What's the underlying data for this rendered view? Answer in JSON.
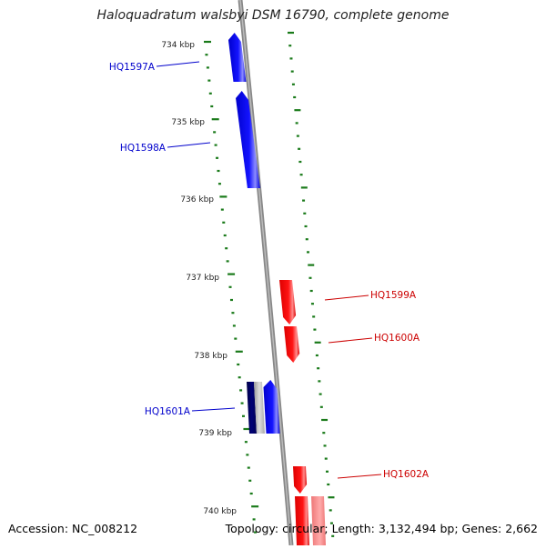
{
  "title": "Haloquadratum walsbyi DSM 16790, complete genome",
  "accession": "Accession: NC_008212",
  "summary": "Topology: circular; Length: 3,132,494 bp; Genes: 2,662",
  "colors": {
    "forward": "#0000ee",
    "reverse": "#ee0000",
    "backbone": "#888888",
    "ticks": "#1a7a1a",
    "forward_label": "#0000cc",
    "reverse_label": "#cc0000"
  },
  "scale_labels": [
    "734 kbp",
    "735 kbp",
    "736 kbp",
    "737 kbp",
    "738 kbp",
    "739 kbp",
    "740 kbp"
  ],
  "genes": [
    {
      "name": "HQ1597A",
      "strand": "forward"
    },
    {
      "name": "HQ1598A",
      "strand": "forward"
    },
    {
      "name": "HQ1599A",
      "strand": "reverse"
    },
    {
      "name": "HQ1600A",
      "strand": "reverse"
    },
    {
      "name": "HQ1601A",
      "strand": "forward"
    },
    {
      "name": "HQ1602A",
      "strand": "reverse"
    }
  ]
}
